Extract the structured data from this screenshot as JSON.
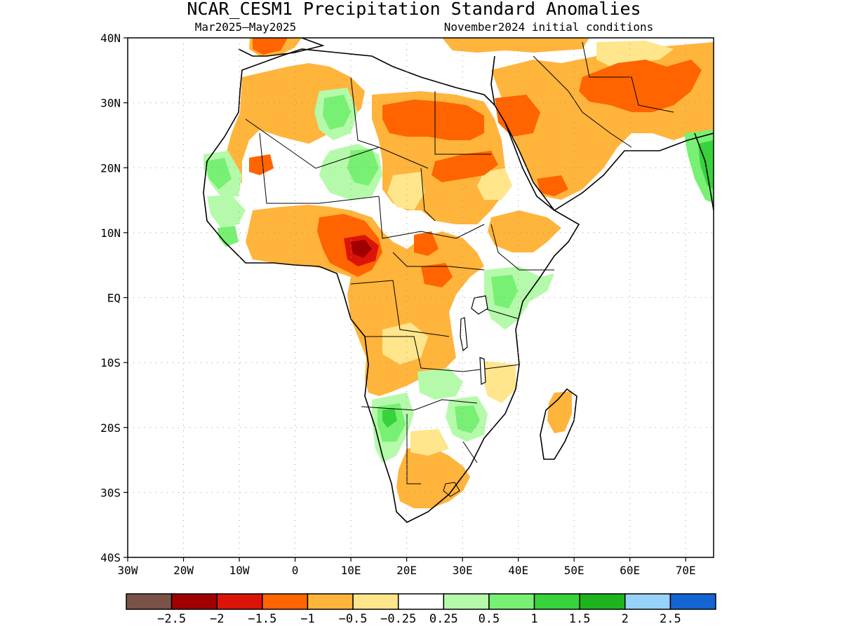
{
  "title": "NCAR_CESM1 Precipitation Standard Anomalies",
  "subtitle_left": "Mar2025–May2025",
  "subtitle_right": "November2024 initial conditions",
  "map": {
    "lon_range": [
      -30,
      75
    ],
    "lat_range": [
      -40,
      40
    ],
    "lat_ticks": [
      {
        "value": 40,
        "label": "40N"
      },
      {
        "value": 30,
        "label": "30N"
      },
      {
        "value": 20,
        "label": "20N"
      },
      {
        "value": 10,
        "label": "10N"
      },
      {
        "value": 0,
        "label": "EQ"
      },
      {
        "value": -10,
        "label": "10S"
      },
      {
        "value": -20,
        "label": "20S"
      },
      {
        "value": -30,
        "label": "30S"
      },
      {
        "value": -40,
        "label": "40S"
      }
    ],
    "lon_ticks": [
      {
        "value": -30,
        "label": "30W"
      },
      {
        "value": -20,
        "label": "20W"
      },
      {
        "value": -10,
        "label": "10W"
      },
      {
        "value": 0,
        "label": "0"
      },
      {
        "value": 10,
        "label": "10E"
      },
      {
        "value": 20,
        "label": "20E"
      },
      {
        "value": 30,
        "label": "30E"
      },
      {
        "value": 40,
        "label": "40E"
      },
      {
        "value": 50,
        "label": "50E"
      },
      {
        "value": 60,
        "label": "60E"
      },
      {
        "value": 70,
        "label": "70E"
      }
    ],
    "grid": "dotted"
  },
  "colorbar": {
    "colors": [
      "#7a5248",
      "#a00000",
      "#dc1408",
      "#ff6400",
      "#ffb43c",
      "#ffe68c",
      "#ffffff",
      "#b4faaa",
      "#78f073",
      "#37d23c",
      "#1eb41e",
      "#96d2fa",
      "#1464d2"
    ],
    "labels": [
      "−2.5",
      "−2",
      "−1.5",
      "−1",
      "−0.5",
      "−0.25",
      "0.25",
      "0.5",
      "1",
      "1.5",
      "2",
      "2.5"
    ]
  }
}
